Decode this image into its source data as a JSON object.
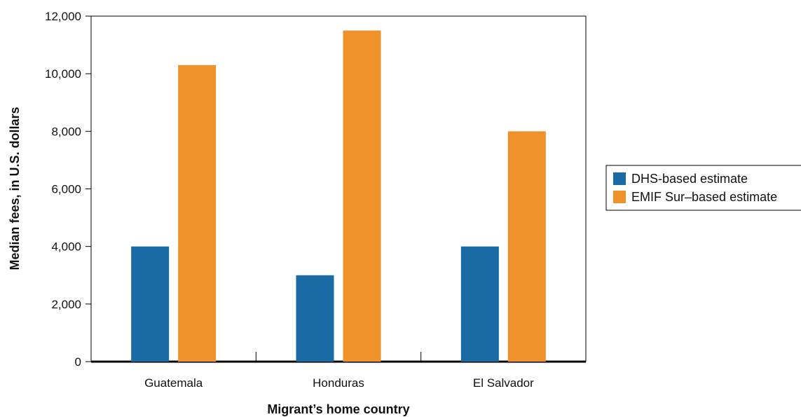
{
  "chart_data": {
    "type": "bar",
    "title": "",
    "xlabel": "Migrant’s home country",
    "ylabel": "Median fees, in U.S. dollars",
    "categories": [
      "Guatemala",
      "Honduras",
      "El Salvador"
    ],
    "series": [
      {
        "name": "DHS-based estimate",
        "color": "#1a6aa3",
        "values": [
          4000,
          3000,
          4000
        ]
      },
      {
        "name": "EMIF Sur–based estimate",
        "color": "#f0922c",
        "values": [
          10300,
          11500,
          8000
        ]
      }
    ],
    "ylim": [
      0,
      12000
    ],
    "yticks": [
      0,
      2000,
      4000,
      6000,
      8000,
      10000,
      12000
    ],
    "ytick_labels": [
      "0",
      "2,000",
      "4,000",
      "6,000",
      "8,000",
      "10,000",
      "12,000"
    ],
    "grid": false,
    "legend_position": "right"
  }
}
